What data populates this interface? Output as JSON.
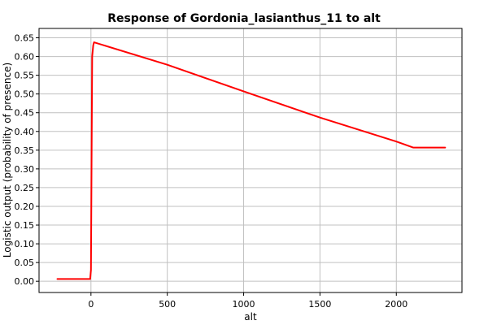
{
  "chart_data": {
    "type": "line",
    "title": "Response of Gordonia_lasianthus_11 to alt",
    "xlabel": "alt",
    "ylabel": "Logistic output (probability of presence)",
    "xlim": [
      -340,
      2430
    ],
    "ylim": [
      -0.03,
      0.675
    ],
    "x_ticks": [
      0,
      500,
      1000,
      1500,
      2000
    ],
    "x_tick_labels": [
      "0",
      "500",
      "1000",
      "1500",
      "2000"
    ],
    "y_ticks": [
      0.0,
      0.05,
      0.1,
      0.15,
      0.2,
      0.25,
      0.3,
      0.35,
      0.4,
      0.45,
      0.5,
      0.55,
      0.6,
      0.65
    ],
    "y_tick_labels": [
      "0.00",
      "0.05",
      "0.10",
      "0.15",
      "0.20",
      "0.25",
      "0.30",
      "0.35",
      "0.40",
      "0.45",
      "0.50",
      "0.55",
      "0.60",
      "0.65"
    ],
    "grid": true,
    "series": [
      {
        "color": "#ff0000",
        "x": [
          -220,
          -5,
          0,
          3,
          8,
          15,
          20,
          500,
          1000,
          1500,
          2000,
          2110,
          2320
        ],
        "y": [
          0.006,
          0.006,
          0.03,
          0.25,
          0.6,
          0.63,
          0.638,
          0.578,
          0.507,
          0.437,
          0.373,
          0.357,
          0.357
        ]
      }
    ]
  }
}
